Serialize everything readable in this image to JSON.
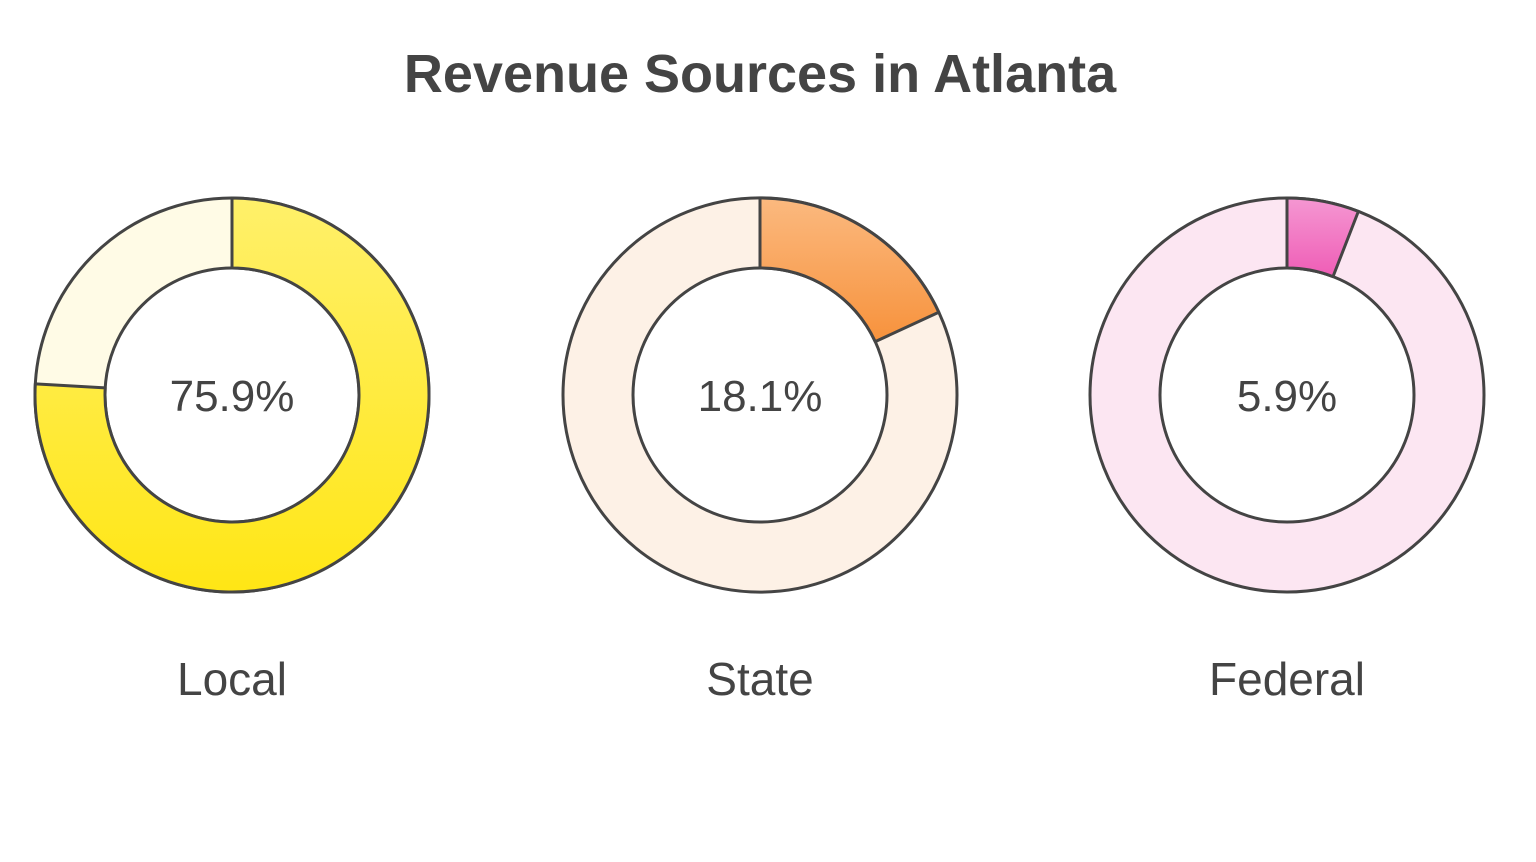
{
  "chart_data": {
    "type": "pie",
    "variant": "donut",
    "title": "Revenue Sources in Atlanta",
    "series": [
      {
        "name": "Local",
        "value": 75.9,
        "label": "75.9%",
        "colors": {
          "fill_top": "#fff06a",
          "fill_bottom": "#ffe615",
          "background": "#fffbe6"
        }
      },
      {
        "name": "State",
        "value": 18.1,
        "label": "18.1%",
        "colors": {
          "fill_top": "#fbb97f",
          "fill_bottom": "#f7923c",
          "background": "#fdf1e6"
        }
      },
      {
        "name": "Federal",
        "value": 5.9,
        "label": "5.9%",
        "colors": {
          "fill_top": "#f597d2",
          "fill_bottom": "#ef5db6",
          "background": "#fce6f2"
        }
      }
    ],
    "stroke_color": "#444444",
    "text_color": "#444444"
  }
}
